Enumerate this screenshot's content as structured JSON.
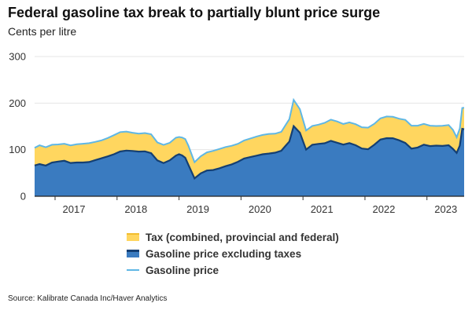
{
  "title": "Federal gasoline tax break to partially blunt price surge",
  "subtitle": "Cents per litre",
  "source": "Source: Kalibrate Canada Inc/Haver Analytics",
  "legend": {
    "tax": "Tax (combined, provincial and federal)",
    "excl": "Gasoline price excluding taxes",
    "price": "Gasoline price"
  },
  "colors": {
    "tax_fill": "#FFD65F",
    "excl_fill": "#3A7BC0",
    "excl_line": "#143F73",
    "price_line": "#5FB7E5",
    "grid": "#e5e5e5"
  },
  "chart_data": {
    "type": "area",
    "title": "Federal gasoline tax break to partially blunt price surge",
    "ylabel": "Cents per litre",
    "xlabel": "",
    "ylim": [
      0,
      300
    ],
    "yticks": [
      0,
      100,
      200,
      300
    ],
    "xticks": [
      "2017",
      "2018",
      "2019",
      "2020",
      "2021",
      "2022",
      "2023"
    ],
    "xlim": [
      2016.67,
      2023.6
    ],
    "grid": true,
    "legend_position": "bottom",
    "x": [
      2016.67,
      2016.75,
      2016.85,
      2016.95,
      2017.05,
      2017.15,
      2017.25,
      2017.35,
      2017.45,
      2017.55,
      2017.65,
      2017.75,
      2017.85,
      2017.95,
      2018.05,
      2018.15,
      2018.25,
      2018.35,
      2018.45,
      2018.55,
      2018.65,
      2018.75,
      2018.85,
      2018.95,
      2019.0,
      2019.05,
      2019.1,
      2019.15,
      2019.25,
      2019.35,
      2019.45,
      2019.55,
      2019.65,
      2019.75,
      2019.85,
      2019.95,
      2020.05,
      2020.15,
      2020.25,
      2020.35,
      2020.45,
      2020.55,
      2020.65,
      2020.72,
      2020.78,
      2020.85,
      2020.95,
      2021.05,
      2021.15,
      2021.25,
      2021.35,
      2021.45,
      2021.55,
      2021.65,
      2021.75,
      2021.85,
      2021.95,
      2022.05,
      2022.15,
      2022.25,
      2022.35,
      2022.45,
      2022.55,
      2022.65,
      2022.75,
      2022.85,
      2022.95,
      2023.05,
      2023.15,
      2023.25,
      2023.35,
      2023.42,
      2023.48,
      2023.53,
      2023.57,
      2023.6
    ],
    "series": [
      {
        "name": "Gasoline price excluding taxes",
        "values": [
          66,
          68,
          64,
          70,
          72,
          74,
          70,
          72,
          73,
          75,
          80,
          84,
          88,
          92,
          97,
          98,
          96,
          94,
          94,
          90,
          75,
          70,
          77,
          88,
          92,
          90,
          85,
          70,
          40,
          50,
          55,
          55,
          58,
          62,
          66,
          72,
          80,
          84,
          88,
          92,
          94,
          96,
          100,
          110,
          118,
          150,
          135,
          98,
          108,
          110,
          112,
          118,
          115,
          112,
          116,
          112,
          105,
          103,
          112,
          122,
          124,
          123,
          118,
          112,
          100,
          103,
          110,
          108,
          110,
          110,
          112,
          104,
          95,
          110,
          145,
          143
        ]
      },
      {
        "name": "Gasoline price",
        "values": [
          104,
          107,
          102,
          108,
          110,
          112,
          108,
          110,
          112,
          115,
          120,
          124,
          128,
          132,
          137,
          138,
          136,
          134,
          134,
          130,
          112,
          108,
          115,
          128,
          130,
          128,
          124,
          110,
          75,
          88,
          95,
          96,
          98,
          102,
          106,
          112,
          120,
          124,
          128,
          132,
          136,
          138,
          142,
          155,
          165,
          205,
          185,
          140,
          150,
          152,
          155,
          162,
          160,
          157,
          162,
          158,
          150,
          148,
          156,
          168,
          172,
          170,
          164,
          160,
          148,
          150,
          156,
          153,
          152,
          152,
          154,
          145,
          130,
          148,
          190,
          188
        ]
      }
    ]
  }
}
